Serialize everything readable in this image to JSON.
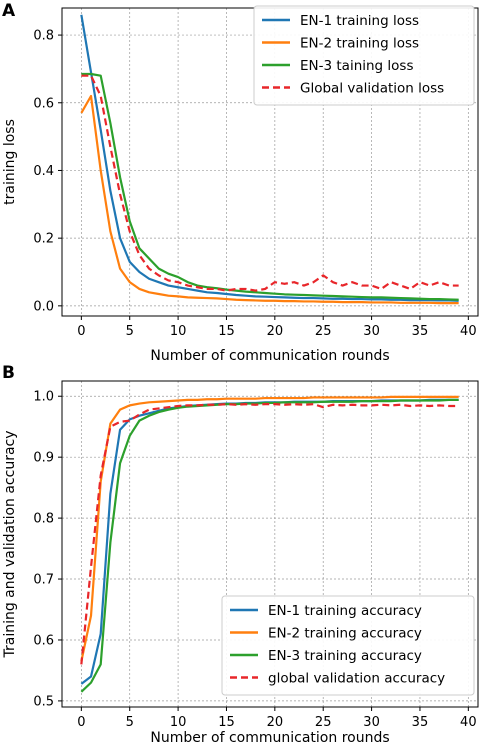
{
  "colors": {
    "en1": "#1f77b4",
    "en2": "#ff7f0e",
    "en3": "#2ca02c",
    "global": "#e8262a"
  },
  "chart_data": [
    {
      "panel": "A",
      "type": "line",
      "title": "",
      "xlabel": "Number of communication rounds",
      "ylabel": "training loss",
      "xlim": [
        -2,
        41
      ],
      "ylim": [
        -0.03,
        0.88
      ],
      "xticks": [
        0,
        5,
        10,
        15,
        20,
        25,
        30,
        35,
        40
      ],
      "yticks": [
        0.0,
        0.2,
        0.4,
        0.6,
        0.8
      ],
      "ytick_labels": [
        "0.0",
        "0.2",
        "0.4",
        "0.6",
        "0.8"
      ],
      "grid": true,
      "legend_position": "top-right",
      "x": [
        0,
        1,
        2,
        3,
        4,
        5,
        6,
        7,
        8,
        9,
        10,
        11,
        12,
        13,
        14,
        15,
        16,
        17,
        18,
        19,
        20,
        21,
        22,
        23,
        24,
        25,
        26,
        27,
        28,
        29,
        30,
        31,
        32,
        33,
        34,
        35,
        36,
        37,
        38,
        39
      ],
      "series": [
        {
          "name": "EN-1 training loss",
          "style": "solid",
          "color_key": "en1",
          "values": [
            0.86,
            0.69,
            0.52,
            0.34,
            0.2,
            0.13,
            0.1,
            0.08,
            0.07,
            0.06,
            0.055,
            0.05,
            0.045,
            0.04,
            0.038,
            0.035,
            0.032,
            0.03,
            0.028,
            0.027,
            0.026,
            0.025,
            0.024,
            0.023,
            0.023,
            0.022,
            0.021,
            0.021,
            0.02,
            0.02,
            0.019,
            0.019,
            0.018,
            0.018,
            0.017,
            0.017,
            0.017,
            0.016,
            0.016,
            0.015
          ]
        },
        {
          "name": "EN-2 training loss",
          "style": "solid",
          "color_key": "en2",
          "values": [
            0.57,
            0.62,
            0.4,
            0.22,
            0.11,
            0.07,
            0.05,
            0.04,
            0.035,
            0.03,
            0.028,
            0.025,
            0.024,
            0.023,
            0.022,
            0.02,
            0.018,
            0.017,
            0.016,
            0.015,
            0.015,
            0.014,
            0.014,
            0.013,
            0.013,
            0.012,
            0.012,
            0.011,
            0.011,
            0.011,
            0.01,
            0.01,
            0.01,
            0.009,
            0.009,
            0.009,
            0.009,
            0.008,
            0.008,
            0.008
          ]
        },
        {
          "name": "EN-3 taining loss",
          "style": "solid",
          "color_key": "en3",
          "values": [
            0.685,
            0.685,
            0.68,
            0.54,
            0.38,
            0.25,
            0.17,
            0.14,
            0.11,
            0.095,
            0.085,
            0.07,
            0.06,
            0.055,
            0.052,
            0.048,
            0.045,
            0.042,
            0.04,
            0.038,
            0.036,
            0.034,
            0.033,
            0.032,
            0.031,
            0.03,
            0.029,
            0.028,
            0.027,
            0.026,
            0.025,
            0.025,
            0.024,
            0.023,
            0.022,
            0.021,
            0.02,
            0.02,
            0.019,
            0.018
          ]
        },
        {
          "name": "Global validation loss",
          "style": "dashed",
          "color_key": "global",
          "values": [
            0.68,
            0.68,
            0.62,
            0.47,
            0.33,
            0.22,
            0.15,
            0.11,
            0.09,
            0.075,
            0.07,
            0.06,
            0.055,
            0.05,
            0.05,
            0.045,
            0.05,
            0.05,
            0.045,
            0.05,
            0.07,
            0.065,
            0.07,
            0.06,
            0.07,
            0.09,
            0.07,
            0.06,
            0.07,
            0.06,
            0.06,
            0.05,
            0.07,
            0.06,
            0.05,
            0.07,
            0.06,
            0.07,
            0.06,
            0.06
          ]
        }
      ]
    },
    {
      "panel": "B",
      "type": "line",
      "title": "",
      "xlabel": "Number of communication rounds",
      "ylabel": "Training and validation accuracy",
      "xlim": [
        -2,
        41
      ],
      "ylim": [
        0.49,
        1.025
      ],
      "xticks": [
        0,
        5,
        10,
        15,
        20,
        25,
        30,
        35,
        40
      ],
      "yticks": [
        0.5,
        0.6,
        0.7,
        0.8,
        0.9,
        1.0
      ],
      "ytick_labels": [
        "0.5",
        "0.6",
        "0.7",
        "0.8",
        "0.9",
        "1.0"
      ],
      "grid": true,
      "legend_position": "bottom-right",
      "x": [
        0,
        1,
        2,
        3,
        4,
        5,
        6,
        7,
        8,
        9,
        10,
        11,
        12,
        13,
        14,
        15,
        16,
        17,
        18,
        19,
        20,
        21,
        22,
        23,
        24,
        25,
        26,
        27,
        28,
        29,
        30,
        31,
        32,
        33,
        34,
        35,
        36,
        37,
        38,
        39
      ],
      "series": [
        {
          "name": "EN-1 training accuracy",
          "style": "solid",
          "color_key": "en1",
          "values": [
            0.528,
            0.54,
            0.61,
            0.84,
            0.945,
            0.962,
            0.968,
            0.972,
            0.976,
            0.98,
            0.982,
            0.984,
            0.985,
            0.986,
            0.987,
            0.988,
            0.988,
            0.989,
            0.989,
            0.99,
            0.99,
            0.99,
            0.991,
            0.991,
            0.991,
            0.991,
            0.992,
            0.992,
            0.992,
            0.992,
            0.992,
            0.993,
            0.993,
            0.993,
            0.993,
            0.993,
            0.994,
            0.994,
            0.994,
            0.994
          ]
        },
        {
          "name": "EN-2 training accuracy",
          "style": "solid",
          "color_key": "en2",
          "values": [
            0.565,
            0.64,
            0.86,
            0.955,
            0.978,
            0.985,
            0.988,
            0.99,
            0.991,
            0.992,
            0.993,
            0.994,
            0.994,
            0.995,
            0.995,
            0.996,
            0.996,
            0.996,
            0.996,
            0.997,
            0.997,
            0.997,
            0.997,
            0.997,
            0.998,
            0.998,
            0.998,
            0.998,
            0.998,
            0.998,
            0.998,
            0.998,
            0.999,
            0.999,
            0.999,
            0.999,
            0.999,
            0.999,
            0.999,
            0.999
          ]
        },
        {
          "name": "EN-3 training accuracy",
          "style": "solid",
          "color_key": "en3",
          "values": [
            0.515,
            0.53,
            0.56,
            0.76,
            0.89,
            0.935,
            0.96,
            0.968,
            0.974,
            0.978,
            0.981,
            0.983,
            0.984,
            0.985,
            0.986,
            0.987,
            0.987,
            0.988,
            0.988,
            0.989,
            0.989,
            0.99,
            0.99,
            0.99,
            0.99,
            0.991,
            0.991,
            0.991,
            0.991,
            0.992,
            0.992,
            0.992,
            0.992,
            0.993,
            0.993,
            0.993,
            0.993,
            0.993,
            0.994,
            0.994
          ]
        },
        {
          "name": "global validation accuracy",
          "style": "dashed",
          "color_key": "global",
          "values": [
            0.56,
            0.72,
            0.87,
            0.95,
            0.958,
            0.96,
            0.97,
            0.978,
            0.98,
            0.982,
            0.984,
            0.985,
            0.985,
            0.986,
            0.986,
            0.987,
            0.986,
            0.987,
            0.986,
            0.987,
            0.987,
            0.986,
            0.987,
            0.986,
            0.987,
            0.982,
            0.986,
            0.985,
            0.986,
            0.985,
            0.985,
            0.986,
            0.985,
            0.986,
            0.984,
            0.985,
            0.984,
            0.985,
            0.984,
            0.984
          ]
        }
      ]
    }
  ]
}
